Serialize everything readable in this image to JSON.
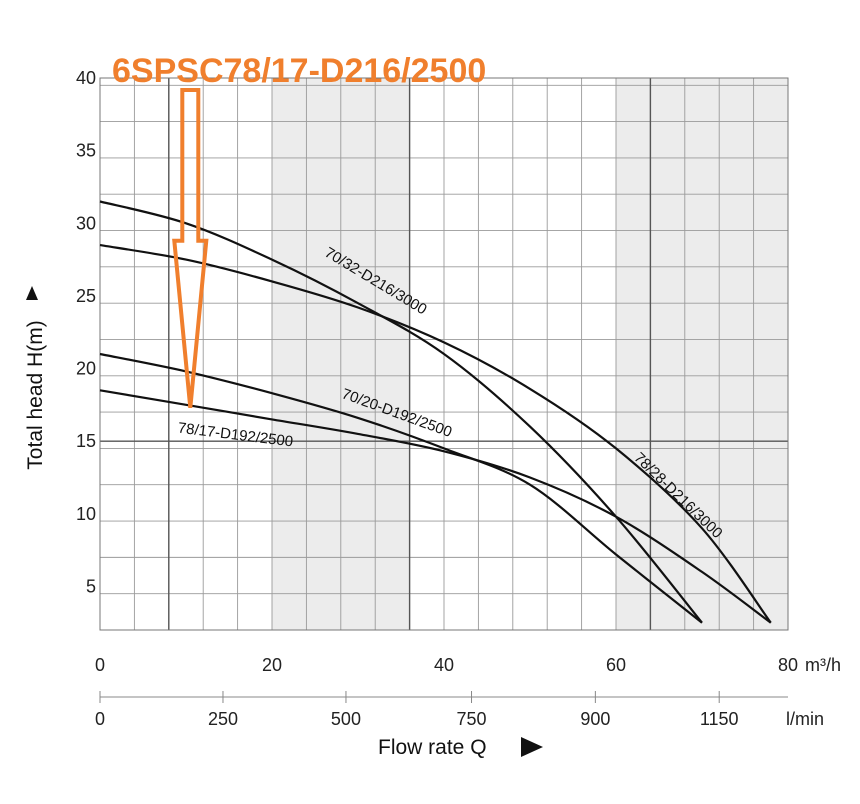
{
  "chart_data": {
    "type": "line",
    "title": "6SPSC78/17-D216/2500",
    "xlabel": "Flow rate Q",
    "ylabel": "Total head H(m)",
    "x_unit_main": "m³/h",
    "x_unit_secondary": "l/min",
    "xlim": [
      0,
      80
    ],
    "ylim": [
      2,
      40
    ],
    "x_ticks": [
      0,
      20,
      40,
      60,
      80
    ],
    "x_tick_labels": [
      "0",
      "20",
      "40",
      "60",
      "80"
    ],
    "secondary_ticks": [
      0,
      250,
      500,
      750,
      900,
      1150
    ],
    "secondary_tick_positions": [
      0,
      14.3,
      28.6,
      43.2,
      57.6,
      72.0
    ],
    "y_ticks": [
      5,
      10,
      15,
      20,
      25,
      30,
      35,
      40
    ],
    "y_tick_labels": [
      "5",
      "10",
      "15",
      "20",
      "25",
      "30",
      "35",
      "40"
    ],
    "grid": true,
    "shaded_x_ranges": [
      [
        20,
        36
      ],
      [
        60,
        80
      ]
    ],
    "series": [
      {
        "name": "70/32-D216/3000",
        "x": [
          0,
          10,
          20,
          30,
          40,
          50,
          60,
          70
        ],
        "y": [
          31.5,
          30,
          27.5,
          24.5,
          21,
          16,
          9.8,
          2.5
        ]
      },
      {
        "name": "78/28-D216/3000",
        "x": [
          0,
          10,
          20,
          30,
          40,
          50,
          60,
          70,
          78
        ],
        "y": [
          28.5,
          27.5,
          26,
          24.2,
          21.8,
          18.6,
          14.5,
          9.0,
          2.5
        ]
      },
      {
        "name": "70/20-D192/2500",
        "x": [
          0,
          10,
          20,
          30,
          40,
          50,
          60,
          70
        ],
        "y": [
          21,
          19.8,
          18.3,
          16.6,
          14.5,
          12,
          7.2,
          2.5
        ]
      },
      {
        "name": "78/17-D192/2500",
        "x": [
          0,
          10,
          20,
          30,
          40,
          50,
          60,
          70,
          78
        ],
        "y": [
          18.5,
          17.5,
          16.5,
          15.5,
          14.3,
          12.5,
          9.8,
          6,
          2.5
        ]
      }
    ],
    "highlight": {
      "label": "6SPSC78/17-D216/2500",
      "color": "#f07f2d",
      "arrow_x": 10.5,
      "arrow_tip_y": 17.3
    }
  }
}
